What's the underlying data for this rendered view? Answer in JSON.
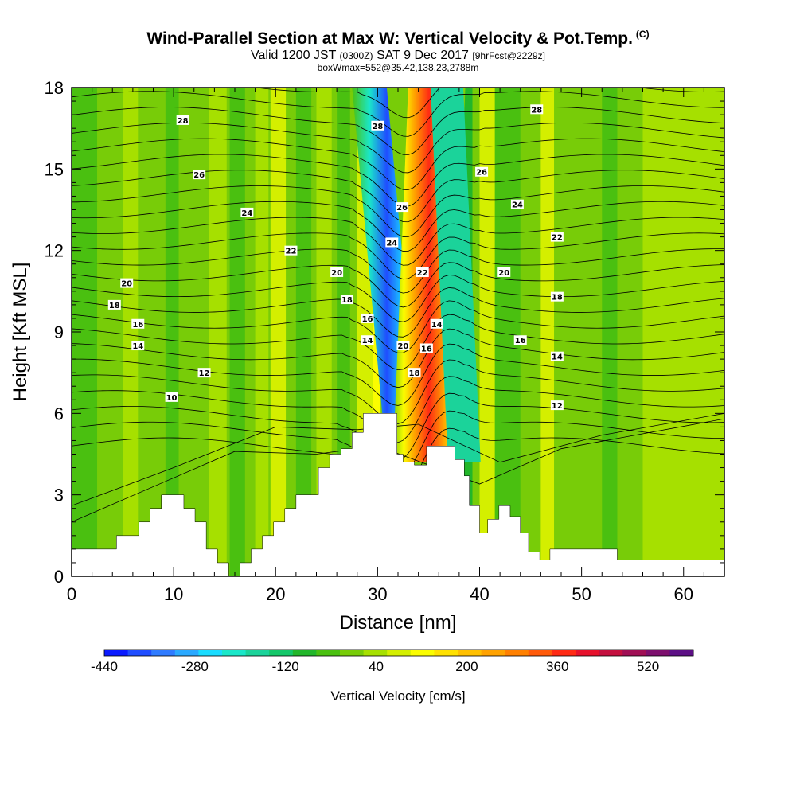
{
  "header": {
    "title": "Wind-Parallel Section at Max W: Vertical Velocity & Pot.Temp.",
    "copyright": "(C)",
    "valid_prefix": "Valid 1200 JST",
    "valid_utc": "(0300Z)",
    "valid_date": "SAT 9 Dec 2017",
    "forecast": "[9hrFcst@2229z]",
    "box_info": "boxWmax=552@35.42,138.23,2788m"
  },
  "chart_data": {
    "type": "heatmap",
    "xlabel": "Distance [nm]",
    "ylabel": "Height [Kft MSL]",
    "xlim": [
      0,
      64
    ],
    "ylim": [
      0,
      18
    ],
    "x_ticks": [
      "0",
      "10",
      "20",
      "30",
      "40",
      "50",
      "60"
    ],
    "y_ticks": [
      "0",
      "3",
      "6",
      "9",
      "12",
      "15",
      "18"
    ],
    "colorbar": {
      "title": "Vertical Velocity [cm/s]",
      "range": [
        -440,
        600
      ],
      "tick_labels": [
        "-440",
        "-280",
        "-120",
        "40",
        "200",
        "360",
        "520"
      ],
      "colors": [
        "#0a1aff",
        "#1f4dff",
        "#2f7bff",
        "#2aa9ff",
        "#19dcff",
        "#1ae7c9",
        "#1bd39a",
        "#14c769",
        "#22b62a",
        "#4ac010",
        "#78cc08",
        "#a6e000",
        "#d4ef00",
        "#fbfd00",
        "#ffe100",
        "#ffc000",
        "#ffa200",
        "#ff8000",
        "#ff5a0a",
        "#ff2a14",
        "#e6112c",
        "#c4103f",
        "#a00f55",
        "#7d0f6e",
        "#5c0f85"
      ]
    },
    "theta_labels": [
      {
        "x": 10.9,
        "z": 16.8,
        "label": "28"
      },
      {
        "x": 12.5,
        "z": 14.8,
        "label": "26"
      },
      {
        "x": 17.2,
        "z": 13.4,
        "label": "24"
      },
      {
        "x": 21.5,
        "z": 12.0,
        "label": "22"
      },
      {
        "x": 5.4,
        "z": 10.8,
        "label": "20"
      },
      {
        "x": 4.2,
        "z": 10.0,
        "label": "18"
      },
      {
        "x": 6.5,
        "z": 9.3,
        "label": "16"
      },
      {
        "x": 6.5,
        "z": 8.5,
        "label": "14"
      },
      {
        "x": 13.0,
        "z": 7.5,
        "label": "12"
      },
      {
        "x": 9.8,
        "z": 6.6,
        "label": "10"
      },
      {
        "x": 26.0,
        "z": 11.2,
        "label": "20"
      },
      {
        "x": 27.0,
        "z": 10.2,
        "label": "18"
      },
      {
        "x": 29.0,
        "z": 9.5,
        "label": "16"
      },
      {
        "x": 29.0,
        "z": 8.7,
        "label": "14"
      },
      {
        "x": 30.0,
        "z": 16.6,
        "label": "28"
      },
      {
        "x": 32.4,
        "z": 13.6,
        "label": "26"
      },
      {
        "x": 31.4,
        "z": 12.3,
        "label": "24"
      },
      {
        "x": 34.4,
        "z": 11.2,
        "label": "22"
      },
      {
        "x": 32.5,
        "z": 8.5,
        "label": "20"
      },
      {
        "x": 34.8,
        "z": 8.4,
        "label": "16"
      },
      {
        "x": 33.6,
        "z": 7.5,
        "label": "18"
      },
      {
        "x": 35.8,
        "z": 9.3,
        "label": "14"
      },
      {
        "x": 40.2,
        "z": 14.9,
        "label": "26"
      },
      {
        "x": 43.7,
        "z": 13.7,
        "label": "24"
      },
      {
        "x": 47.6,
        "z": 12.5,
        "label": "22"
      },
      {
        "x": 42.4,
        "z": 11.2,
        "label": "20"
      },
      {
        "x": 47.6,
        "z": 10.3,
        "label": "18"
      },
      {
        "x": 44.0,
        "z": 8.7,
        "label": "16"
      },
      {
        "x": 47.6,
        "z": 8.1,
        "label": "14"
      },
      {
        "x": 47.6,
        "z": 6.3,
        "label": "12"
      },
      {
        "x": 45.6,
        "z": 17.2,
        "label": "28"
      }
    ],
    "terrain": {
      "x": [
        0,
        4.4,
        4.4,
        6.6,
        6.6,
        7.7,
        7.7,
        8.8,
        8.8,
        11.0,
        11.0,
        12.1,
        12.1,
        13.2,
        13.2,
        14.3,
        14.3,
        15.4,
        15.4,
        16.5,
        16.5,
        17.6,
        17.6,
        18.7,
        18.7,
        19.8,
        19.8,
        20.9,
        20.9,
        22.0,
        22.0,
        24.2,
        24.2,
        25.3,
        25.3,
        26.4,
        26.4,
        27.5,
        27.5,
        28.6,
        28.6,
        29.7,
        29.7,
        31.9,
        31.9,
        32.5,
        32.5,
        33.6,
        33.6,
        34.8,
        34.8,
        37.6,
        37.6,
        38.5,
        38.5,
        39.0,
        39.0,
        40.0,
        40.0,
        40.8,
        40.8,
        41.9,
        41.9,
        43.0,
        43.0,
        44.0,
        44.0,
        44.8,
        44.8,
        45.9,
        45.9,
        46.9,
        46.9,
        48.0,
        48.0,
        53.5,
        53.5,
        64
      ],
      "z": [
        1.0,
        1.0,
        1.5,
        1.5,
        2.0,
        2.0,
        2.5,
        2.5,
        3.0,
        3.0,
        2.5,
        2.5,
        2.0,
        2.0,
        1.0,
        1.0,
        0.5,
        0.5,
        0.0,
        0.0,
        0.5,
        0.5,
        1.0,
        1.0,
        1.5,
        1.5,
        2.0,
        2.0,
        2.5,
        2.5,
        3.0,
        3.0,
        4.0,
        4.0,
        4.5,
        4.5,
        4.7,
        4.7,
        5.3,
        5.3,
        6.0,
        6.0,
        6.0,
        6.0,
        4.5,
        4.5,
        4.2,
        4.2,
        4.1,
        4.1,
        4.8,
        4.8,
        4.3,
        4.3,
        3.7,
        3.7,
        2.6,
        2.6,
        1.6,
        1.6,
        2.1,
        2.1,
        2.6,
        2.6,
        2.2,
        2.2,
        1.6,
        1.6,
        0.9,
        0.9,
        0.6,
        0.6,
        1.0,
        1.0,
        1.0,
        1.0,
        0.6,
        0.6
      ]
    }
  }
}
